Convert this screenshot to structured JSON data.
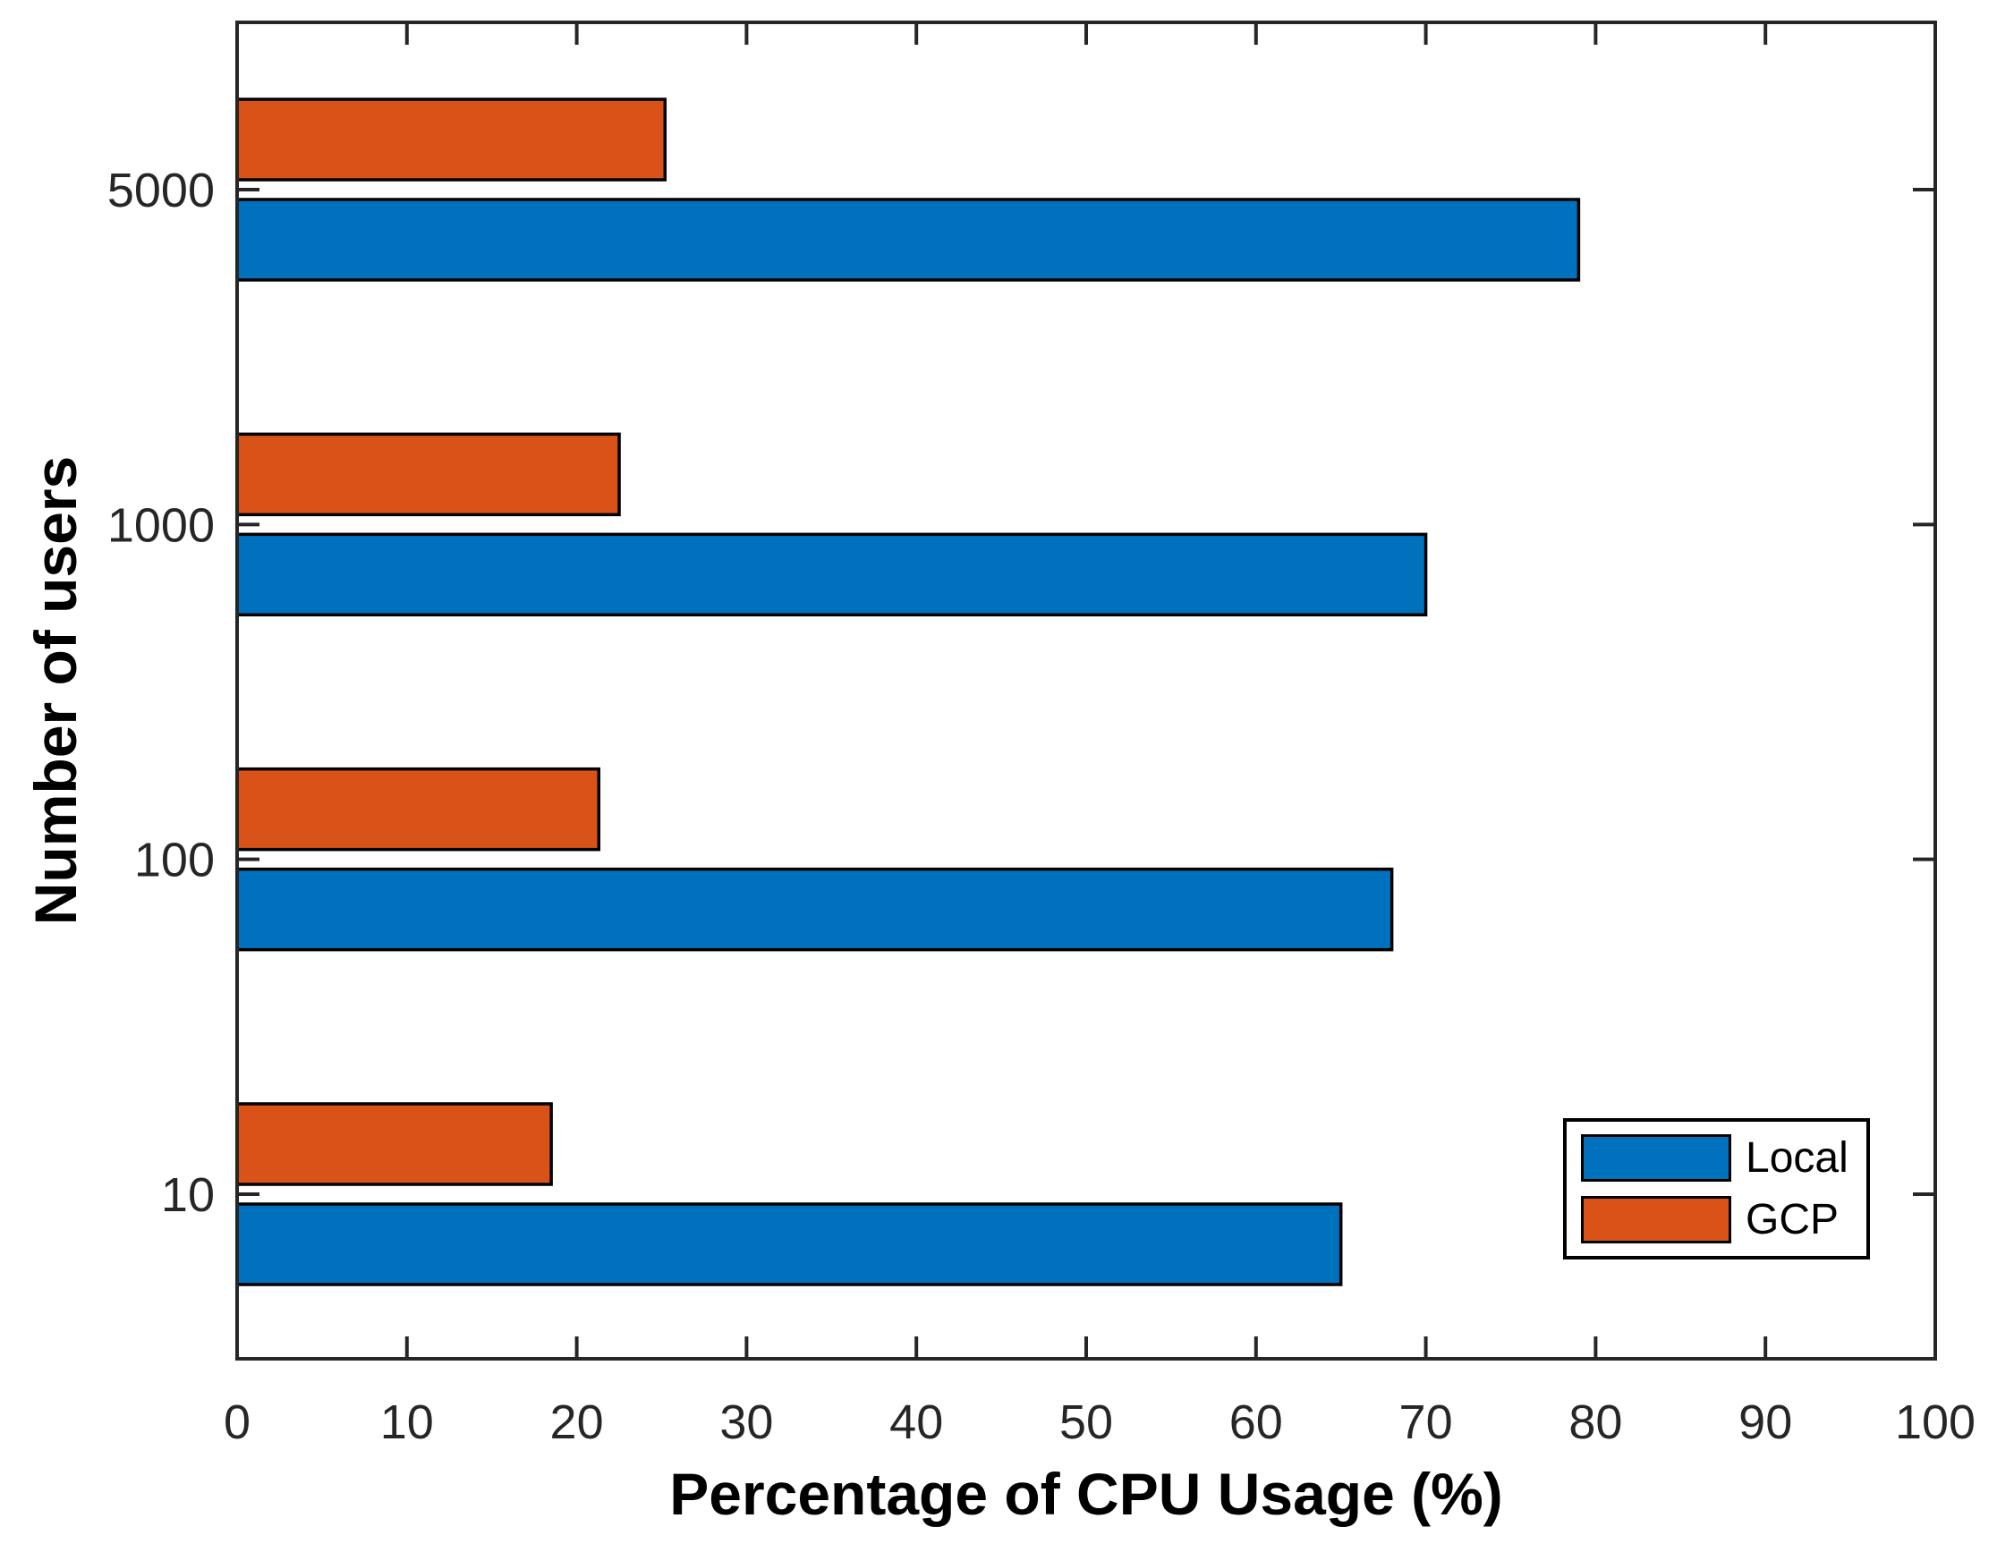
{
  "chart_data": {
    "type": "bar",
    "orientation": "horizontal",
    "title": "",
    "xlabel": "Percentage of CPU Usage (%)",
    "ylabel": "Number of users",
    "categories": [
      "10",
      "100",
      "1000",
      "5000"
    ],
    "series": [
      {
        "name": "Local",
        "color": "#0072BD",
        "values": [
          65,
          68,
          70,
          79
        ]
      },
      {
        "name": "GCP",
        "color": "#D95319",
        "values": [
          18.5,
          21.3,
          22.5,
          25.2
        ]
      }
    ],
    "xlim": [
      0,
      100
    ],
    "x_ticks": [
      0,
      10,
      20,
      30,
      40,
      50,
      60,
      70,
      80,
      90,
      100
    ],
    "grid": false,
    "legend_position": "lower-right",
    "legend_labels": [
      "Local",
      "GCP"
    ],
    "axis_color": "#262626",
    "bar_edge_color": "#000000",
    "background_color": "#ffffff"
  }
}
